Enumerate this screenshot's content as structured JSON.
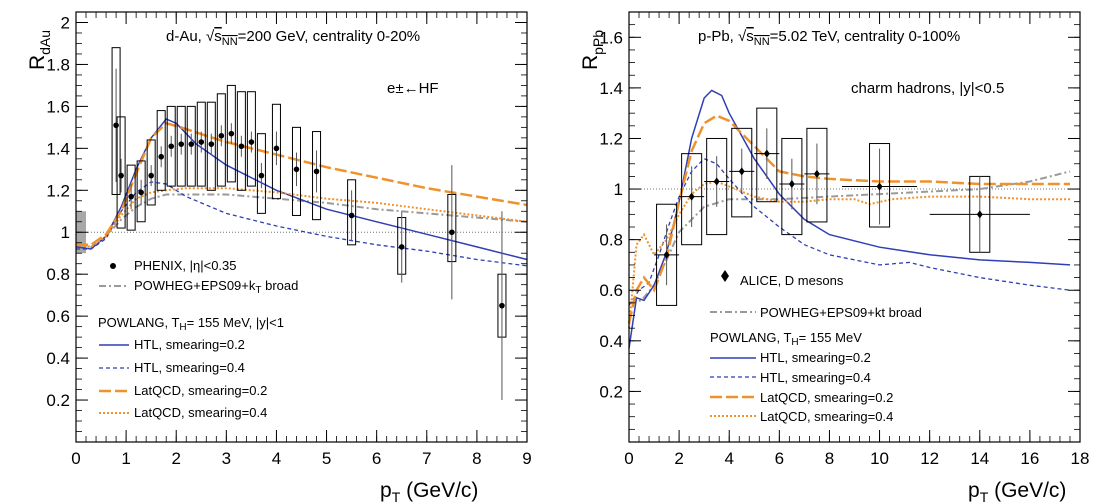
{
  "colors": {
    "htl": "#2f3fb5",
    "latqcd": "#f0922c",
    "powheg": "#9a9a9a",
    "data": "#000000",
    "syst_band": "#a8a8a8"
  },
  "chart_data": [
    {
      "type": "scatter",
      "panel": "left",
      "ylabel_main": "R",
      "ylabel_sub": "dAu",
      "xlabel_main": "p",
      "xlabel_sub": "T",
      "xlabel_rest": " (GeV/c)",
      "xlim": [
        0,
        9
      ],
      "ylim": [
        0,
        2.05
      ],
      "xticks": [
        0,
        1,
        2,
        3,
        4,
        5,
        6,
        7,
        8,
        9
      ],
      "yticks": [
        0.2,
        0.4,
        0.6,
        0.8,
        1,
        1.2,
        1.4,
        1.6,
        1.8,
        2
      ],
      "reference_line": 1,
      "annotations": {
        "system_prefix": "d-Au, ",
        "sqrt": "√",
        "s_nn_s": "s",
        "s_nn_sub": "NN",
        "system_suffix": "=200 GeV, centrality 0-20%",
        "probe": "e±←HF"
      },
      "global_uncertainty": {
        "x": 0.2,
        "low": 0.9,
        "high": 1.1
      },
      "data_points": {
        "name": "PHENIX, |η|<0.35",
        "x": [
          0.8,
          0.9,
          1.1,
          1.3,
          1.5,
          1.7,
          1.9,
          2.1,
          2.3,
          2.5,
          2.7,
          2.9,
          3.1,
          3.3,
          3.5,
          3.7,
          4.0,
          4.4,
          4.8,
          5.5,
          6.5,
          7.5,
          8.5
        ],
        "y": [
          1.51,
          1.27,
          1.17,
          1.19,
          1.27,
          1.36,
          1.41,
          1.42,
          1.42,
          1.43,
          1.42,
          1.46,
          1.47,
          1.41,
          1.43,
          1.27,
          1.4,
          1.3,
          1.29,
          1.08,
          0.93,
          1.0,
          0.65
        ],
        "stat": [
          0.27,
          0.08,
          0.06,
          0.06,
          0.05,
          0.05,
          0.05,
          0.05,
          0.05,
          0.05,
          0.05,
          0.05,
          0.05,
          0.05,
          0.05,
          0.06,
          0.08,
          0.08,
          0.1,
          0.12,
          0.17,
          0.32,
          0.45
        ],
        "syst_low": [
          1.18,
          1.02,
          1.01,
          1.05,
          1.13,
          1.2,
          1.22,
          1.22,
          1.22,
          1.22,
          1.2,
          1.22,
          1.24,
          1.2,
          1.22,
          1.09,
          1.16,
          1.08,
          1.06,
          0.94,
          0.8,
          0.86,
          0.5
        ],
        "syst_high": [
          1.88,
          1.55,
          1.32,
          1.34,
          1.44,
          1.58,
          1.6,
          1.6,
          1.6,
          1.62,
          1.62,
          1.66,
          1.7,
          1.67,
          1.67,
          1.47,
          1.61,
          1.5,
          1.48,
          1.25,
          1.07,
          1.18,
          0.8
        ]
      },
      "series": [
        {
          "name": "POWHEG+EPS09+k",
          "name_sub": "T",
          "name_rest": " broad",
          "style": "powheg",
          "x": [
            0,
            0.3,
            0.6,
            0.9,
            1.2,
            1.5,
            1.8,
            2.2,
            3,
            4,
            5,
            6,
            7,
            8,
            9
          ],
          "y": [
            0.95,
            0.93,
            0.98,
            1.06,
            1.12,
            1.16,
            1.18,
            1.18,
            1.18,
            1.16,
            1.14,
            1.11,
            1.09,
            1.07,
            1.05
          ]
        },
        {
          "name": "HTL, smearing=0.2",
          "style": "htl_solid",
          "x": [
            0,
            0.3,
            0.6,
            0.9,
            1.2,
            1.5,
            1.8,
            2.0,
            2.4,
            3,
            4,
            5,
            6,
            7,
            8,
            9
          ],
          "y": [
            0.93,
            0.92,
            0.98,
            1.12,
            1.3,
            1.45,
            1.54,
            1.52,
            1.42,
            1.32,
            1.2,
            1.11,
            1.05,
            0.99,
            0.93,
            0.87
          ]
        },
        {
          "name": "HTL, smearing=0.4",
          "style": "htl_dashed",
          "x": [
            0,
            0.3,
            0.6,
            0.9,
            1.2,
            1.5,
            1.8,
            2.2,
            3,
            4,
            5,
            6,
            7,
            8,
            9
          ],
          "y": [
            0.92,
            0.92,
            0.97,
            1.1,
            1.19,
            1.24,
            1.23,
            1.17,
            1.09,
            1.03,
            0.98,
            0.94,
            0.91,
            0.87,
            0.84
          ]
        },
        {
          "name": "LatQCD, smearing=0.2",
          "style": "lat_dashed",
          "x": [
            0,
            0.3,
            0.6,
            0.9,
            1.2,
            1.5,
            1.8,
            2.1,
            2.6,
            3,
            4,
            5,
            6,
            7,
            8,
            9
          ],
          "y": [
            0.94,
            0.94,
            0.99,
            1.1,
            1.28,
            1.45,
            1.52,
            1.5,
            1.46,
            1.43,
            1.37,
            1.31,
            1.26,
            1.21,
            1.17,
            1.13
          ]
        },
        {
          "name": "LatQCD, smearing=0.4",
          "style": "lat_dotted",
          "x": [
            0,
            0.3,
            0.6,
            0.9,
            1.2,
            1.5,
            1.8,
            2.2,
            3,
            4,
            5,
            6,
            7,
            8,
            9
          ],
          "y": [
            0.94,
            0.93,
            0.98,
            1.08,
            1.16,
            1.19,
            1.2,
            1.21,
            1.21,
            1.19,
            1.16,
            1.14,
            1.11,
            1.08,
            1.05
          ]
        }
      ],
      "legend": {
        "data_label": "PHENIX, |η|<0.35",
        "powheg_main": "POWHEG+EPS09+k",
        "powheg_sub": "T",
        "powheg_rest": " broad",
        "model_header_main": "POWLANG, T",
        "model_header_sub": "H",
        "model_header_rest": "= 155 MeV, |y|<1",
        "entries": [
          "HTL, smearing=0.2",
          "HTL, smearing=0.4",
          "LatQCD, smearing=0.2",
          "LatQCD, smearing=0.4"
        ]
      }
    },
    {
      "type": "scatter",
      "panel": "right",
      "ylabel_main": "R",
      "ylabel_sub": "pPb",
      "xlabel_main": "p",
      "xlabel_sub": "T",
      "xlabel_rest": " (GeV/c)",
      "xlim": [
        0,
        18
      ],
      "ylim": [
        0,
        1.7
      ],
      "xticks": [
        0,
        2,
        4,
        6,
        8,
        10,
        12,
        14,
        16,
        18
      ],
      "yticks": [
        0.2,
        0.4,
        0.6,
        0.8,
        1,
        1.2,
        1.4,
        1.6
      ],
      "reference_line": 1,
      "annotations": {
        "system_prefix": "p-Pb, ",
        "sqrt": "√",
        "s_nn_s": "s",
        "s_nn_sub": "NN",
        "system_suffix": "=5.02 TeV, centrality 0-100%",
        "probe": "charm hadrons, |y|<0.5"
      },
      "data_points": {
        "name": "ALICE, D mesons",
        "x": [
          1.5,
          2.5,
          3.5,
          4.5,
          5.5,
          6.5,
          7.5,
          10,
          14
        ],
        "xerr": [
          0.5,
          0.5,
          0.5,
          0.5,
          0.5,
          0.5,
          0.5,
          1.5,
          2.0
        ],
        "y": [
          0.74,
          0.97,
          1.03,
          1.07,
          1.14,
          1.02,
          1.06,
          1.01,
          0.9
        ],
        "stat": [
          0.12,
          0.12,
          0.1,
          0.09,
          0.1,
          0.1,
          0.12,
          0.15,
          0.15
        ],
        "syst_low": [
          0.54,
          0.78,
          0.82,
          0.89,
          0.95,
          0.82,
          0.87,
          0.85,
          0.75
        ],
        "syst_high": [
          0.94,
          1.14,
          1.2,
          1.24,
          1.32,
          1.2,
          1.24,
          1.18,
          1.05
        ]
      },
      "series": [
        {
          "name": "POWHEG+EPS09+kt broad",
          "style": "powheg",
          "x": [
            0,
            0.5,
            1,
            1.5,
            2,
            3,
            4,
            5,
            6,
            8,
            10,
            12,
            14,
            16,
            17.6
          ],
          "y": [
            0.55,
            0.56,
            0.62,
            0.72,
            0.83,
            0.93,
            0.96,
            0.96,
            0.96,
            0.97,
            0.98,
            0.99,
            1.0,
            1.03,
            1.07
          ]
        },
        {
          "name": "HTL, smearing=0.2",
          "style": "htl_solid",
          "x": [
            0,
            0.3,
            0.6,
            1,
            1.5,
            2,
            2.5,
            3,
            3.3,
            3.7,
            4,
            5,
            6,
            7,
            8,
            10,
            12,
            14,
            16,
            17.6
          ],
          "y": [
            0.37,
            0.57,
            0.56,
            0.62,
            0.75,
            0.95,
            1.2,
            1.36,
            1.39,
            1.37,
            1.3,
            1.12,
            0.98,
            0.88,
            0.82,
            0.77,
            0.74,
            0.72,
            0.71,
            0.7
          ]
        },
        {
          "name": "HTL, smearing=0.4",
          "style": "htl_dashed",
          "x": [
            0,
            0.4,
            0.8,
            1.2,
            1.6,
            2,
            2.5,
            3,
            3.5,
            4,
            5,
            6,
            7,
            8,
            10,
            11.2,
            12,
            14,
            16,
            17.6
          ],
          "y": [
            0.54,
            0.6,
            0.63,
            0.74,
            0.86,
            0.97,
            1.07,
            1.12,
            1.1,
            1.04,
            0.93,
            0.85,
            0.78,
            0.74,
            0.7,
            0.71,
            0.69,
            0.65,
            0.62,
            0.6
          ]
        },
        {
          "name": "LatQCD, smearing=0.2",
          "style": "lat_dashed",
          "x": [
            0,
            0.3,
            0.6,
            1,
            1.5,
            2,
            2.5,
            3,
            3.5,
            4,
            5,
            6,
            7,
            8,
            10,
            12,
            14,
            16,
            17.6
          ],
          "y": [
            0.47,
            0.6,
            0.65,
            0.6,
            0.73,
            0.95,
            1.15,
            1.26,
            1.29,
            1.27,
            1.17,
            1.07,
            1.05,
            1.04,
            1.03,
            1.03,
            1.02,
            1.02,
            1.02
          ]
        },
        {
          "name": "LatQCD, smearing=0.4",
          "style": "lat_dotted",
          "x": [
            0,
            0.3,
            0.6,
            1,
            1.5,
            2,
            2.5,
            3,
            3.5,
            4,
            5,
            6,
            7,
            8,
            9,
            9.6,
            10.5,
            12,
            14,
            16,
            17.6
          ],
          "y": [
            0.45,
            0.78,
            0.82,
            0.74,
            0.8,
            0.9,
            0.98,
            1.02,
            1.03,
            1.01,
            0.97,
            0.95,
            0.95,
            0.96,
            0.96,
            0.94,
            0.96,
            0.97,
            0.97,
            0.96,
            0.96
          ]
        }
      ],
      "legend": {
        "data_label": "ALICE, D mesons",
        "powheg_main": "POWHEG+EPS09+kt broad",
        "model_header_main": "POWLANG, T",
        "model_header_sub": "H",
        "model_header_rest": "= 155 MeV",
        "entries": [
          "HTL, smearing=0.2",
          "HTL, smearing=0.4",
          "LatQCD, smearing=0.2",
          "LatQCD, smearing=0.4"
        ]
      }
    }
  ]
}
